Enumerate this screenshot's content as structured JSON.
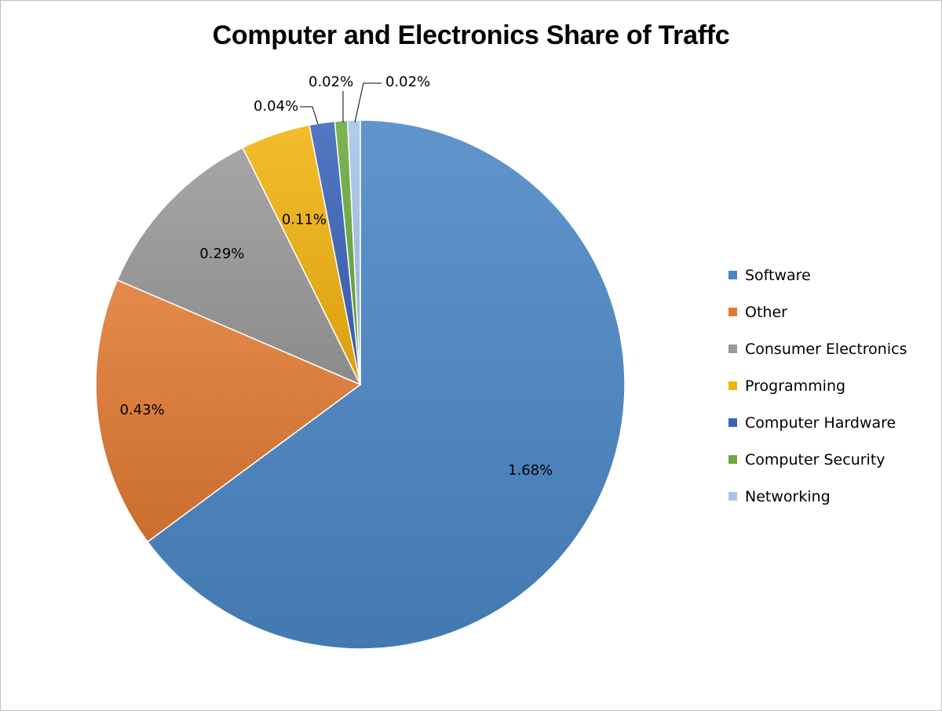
{
  "chart_data": {
    "type": "pie",
    "title": "Computer and Electronics Share of Traffc",
    "legend_position": "right",
    "slices": [
      {
        "name": "Software",
        "value": 1.68,
        "label": "1.68%",
        "color": "#4a86c5"
      },
      {
        "name": "Other",
        "value": 0.43,
        "label": "0.43%",
        "color": "#e07a33"
      },
      {
        "name": "Consumer Electronics",
        "value": 0.29,
        "label": "0.29%",
        "color": "#9a9a9a"
      },
      {
        "name": "Programming",
        "value": 0.11,
        "label": "0.11%",
        "color": "#f2b30f"
      },
      {
        "name": "Computer Hardware",
        "value": 0.04,
        "label": "0.04%",
        "color": "#3b64b8"
      },
      {
        "name": "Computer Security",
        "value": 0.02,
        "label": "0.02%",
        "color": "#6aaa3c"
      },
      {
        "name": "Networking",
        "value": 0.02,
        "label": "0.02%",
        "color": "#a9c4e8"
      }
    ]
  }
}
